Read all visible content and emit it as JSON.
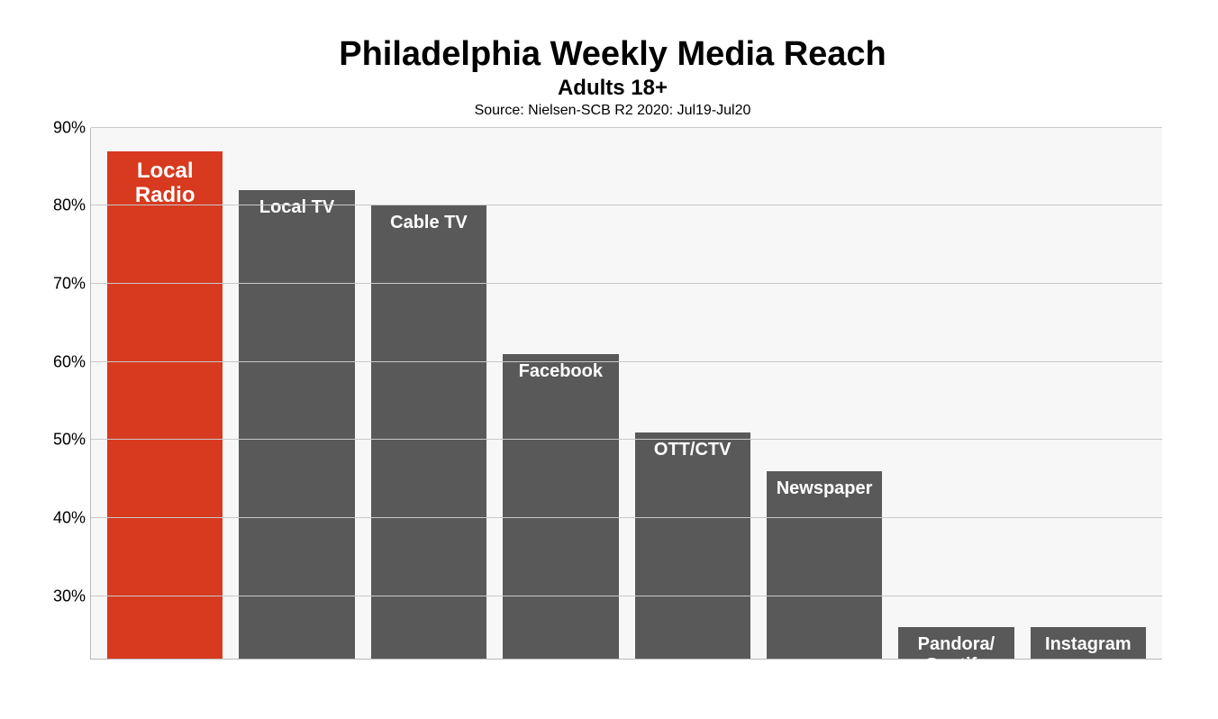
{
  "chart": {
    "type": "bar",
    "title": "Philadelphia Weekly Media Reach",
    "subtitle": "Adults 18+",
    "source": "Source: Nielsen-SCB R2 2020: Jul19-Jul20",
    "title_fontsize": 38,
    "subtitle_fontsize": 24,
    "source_fontsize": 16,
    "background_color": "#ffffff",
    "plot_background_color": "#f7f7f7",
    "grid_color": "#c9c9c9",
    "axis_color": "#b8b8b8",
    "ylim_min": 22,
    "ylim_max": 90,
    "ytick_step": 10,
    "ytick_min": 30,
    "ytick_max": 90,
    "ytick_suffix": "%",
    "ylabel_fontsize": 18,
    "ylabel_color": "#000000",
    "bar_label_color": "#ffffff",
    "bar_width_ratio": 0.88,
    "bars": [
      {
        "label": "Local\nRadio",
        "value": 87,
        "color": "#d73a1f",
        "label_fontsize": 24
      },
      {
        "label": "Local TV",
        "value": 82,
        "color": "#595959",
        "label_fontsize": 20
      },
      {
        "label": "Cable TV",
        "value": 80,
        "color": "#595959",
        "label_fontsize": 20
      },
      {
        "label": "Facebook",
        "value": 61,
        "color": "#595959",
        "label_fontsize": 20
      },
      {
        "label": "OTT/CTV",
        "value": 51,
        "color": "#595959",
        "label_fontsize": 20
      },
      {
        "label": "Newspaper",
        "value": 46,
        "color": "#595959",
        "label_fontsize": 20
      },
      {
        "label": "Pandora/\nSpotify",
        "value": 26,
        "color": "#595959",
        "label_fontsize": 20
      },
      {
        "label": "Instagram",
        "value": 26,
        "color": "#595959",
        "label_fontsize": 20
      }
    ]
  }
}
